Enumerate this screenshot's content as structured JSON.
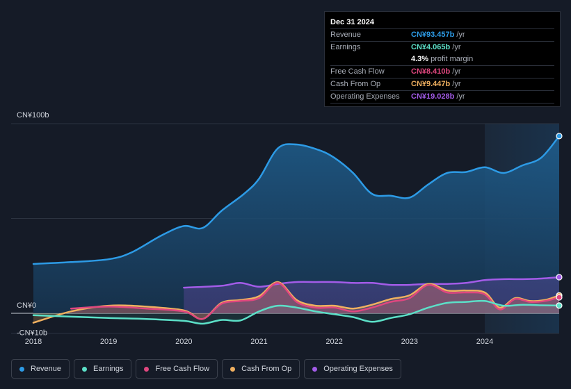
{
  "tooltip": {
    "date": "Dec 31 2024",
    "rows": [
      {
        "label": "Revenue",
        "value": "CN¥93.457b",
        "unit": "/yr",
        "color": "#2d9be6"
      },
      {
        "label": "Earnings",
        "value": "CN¥4.065b",
        "unit": "/yr",
        "color": "#5ce0c8"
      },
      {
        "label": "",
        "value": "4.3%",
        "unit": "profit margin",
        "color": "#ffffff"
      },
      {
        "label": "Free Cash Flow",
        "value": "CN¥8.410b",
        "unit": "/yr",
        "color": "#e0477f"
      },
      {
        "label": "Cash From Op",
        "value": "CN¥9.447b",
        "unit": "/yr",
        "color": "#f0b060"
      },
      {
        "label": "Operating Expenses",
        "value": "CN¥19.028b",
        "unit": "/yr",
        "color": "#a35ce8"
      }
    ]
  },
  "legend": [
    {
      "label": "Revenue",
      "color": "#2d9be6"
    },
    {
      "label": "Earnings",
      "color": "#5ce0c8"
    },
    {
      "label": "Free Cash Flow",
      "color": "#e0477f"
    },
    {
      "label": "Cash From Op",
      "color": "#f0b060"
    },
    {
      "label": "Operating Expenses",
      "color": "#a35ce8"
    }
  ],
  "chart_data": {
    "type": "area",
    "y_tick_labels": [
      "CN¥100b",
      "CN¥0",
      "-CN¥10b"
    ],
    "y_ticks": [
      100,
      0,
      -10
    ],
    "ylim": [
      -10,
      100
    ],
    "x_tick_labels": [
      "2018",
      "2019",
      "2020",
      "2021",
      "2022",
      "2023",
      "2024"
    ],
    "x_ticks": [
      2018,
      2019,
      2020,
      2021,
      2022,
      2023,
      2024
    ],
    "xlim": [
      2017.7,
      2025.0
    ],
    "highlight_start": 2024.0,
    "series": [
      {
        "name": "Revenue",
        "color": "#2d9be6",
        "x": [
          2018.0,
          2018.5,
          2019.0,
          2019.3,
          2019.7,
          2020.0,
          2020.25,
          2020.5,
          2020.8,
          2021.0,
          2021.25,
          2021.5,
          2021.8,
          2022.0,
          2022.25,
          2022.5,
          2022.75,
          2023.0,
          2023.25,
          2023.5,
          2023.75,
          2024.0,
          2024.25,
          2024.5,
          2024.75,
          2025.0
        ],
        "values": [
          26,
          27,
          28.5,
          32,
          41,
          46,
          45,
          54,
          63,
          71,
          87,
          89,
          86,
          82,
          74,
          63,
          62,
          61,
          68,
          74,
          74.5,
          77,
          74,
          78,
          82,
          93.457
        ]
      },
      {
        "name": "Earnings",
        "color": "#5ce0c8",
        "x": [
          2018.0,
          2018.5,
          2019.0,
          2019.5,
          2020.0,
          2020.25,
          2020.5,
          2020.75,
          2021.0,
          2021.25,
          2021.5,
          2021.75,
          2022.0,
          2022.25,
          2022.5,
          2022.75,
          2023.0,
          2023.25,
          2023.5,
          2023.75,
          2024.0,
          2024.25,
          2024.5,
          2024.75,
          2025.0
        ],
        "values": [
          -1,
          -1.8,
          -2.5,
          -3,
          -4,
          -5.5,
          -3.5,
          -3.8,
          1,
          4,
          3,
          1,
          -0.5,
          -2,
          -4.5,
          -2.5,
          -0.5,
          3,
          5.5,
          6,
          6.5,
          4,
          4.5,
          4.2,
          4.065
        ]
      },
      {
        "name": "Free Cash Flow",
        "color": "#e0477f",
        "x": [
          2018.5,
          2019.0,
          2019.5,
          2020.0,
          2020.25,
          2020.5,
          2020.75,
          2021.0,
          2021.25,
          2021.5,
          2021.75,
          2022.0,
          2022.25,
          2022.5,
          2022.75,
          2023.0,
          2023.25,
          2023.5,
          2023.75,
          2024.0,
          2024.2,
          2024.4,
          2024.6,
          2024.8,
          2025.0
        ],
        "values": [
          2.5,
          3.5,
          2.5,
          1,
          -3,
          5,
          6.5,
          8,
          16,
          6,
          3,
          3,
          1,
          3,
          6,
          8,
          15,
          11,
          11,
          10,
          2,
          7.5,
          6,
          6.5,
          8.41
        ]
      },
      {
        "name": "Cash From Op",
        "color": "#f0b060",
        "x": [
          2018.0,
          2018.5,
          2019.0,
          2019.5,
          2020.0,
          2020.25,
          2020.5,
          2020.75,
          2021.0,
          2021.25,
          2021.5,
          2021.75,
          2022.0,
          2022.25,
          2022.5,
          2022.75,
          2023.0,
          2023.25,
          2023.5,
          2023.75,
          2024.0,
          2024.2,
          2024.4,
          2024.6,
          2024.8,
          2025.0
        ],
        "values": [
          -5,
          1,
          4,
          3.5,
          1.5,
          -3,
          5.5,
          7,
          9,
          16.5,
          7,
          4,
          4,
          2.5,
          4.5,
          7.5,
          9.5,
          15.5,
          12,
          12,
          11,
          3,
          8,
          6.5,
          7,
          9.447
        ]
      },
      {
        "name": "Operating Expenses",
        "color": "#a35ce8",
        "x": [
          2020.0,
          2020.5,
          2020.75,
          2021.0,
          2021.25,
          2021.5,
          2021.75,
          2022.0,
          2022.25,
          2022.5,
          2022.75,
          2023.0,
          2023.25,
          2023.5,
          2023.75,
          2024.0,
          2024.25,
          2024.5,
          2024.75,
          2025.0
        ],
        "values": [
          13.5,
          14.5,
          16,
          14,
          15.5,
          16.5,
          16.5,
          16.5,
          16,
          16,
          15,
          15,
          15.5,
          15.5,
          16,
          17.5,
          18,
          18,
          18.3,
          19.028
        ]
      }
    ]
  }
}
